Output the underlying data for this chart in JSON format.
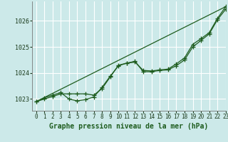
{
  "title": "Graphe pression niveau de la mer (hPa)",
  "bg_color": "#cce9e9",
  "grid_color": "#ffffff",
  "line_color": "#1e5c1e",
  "xlim": [
    -0.5,
    23
  ],
  "ylim": [
    1022.55,
    1026.75
  ],
  "yticks": [
    1023,
    1024,
    1025,
    1026
  ],
  "xticks": [
    0,
    1,
    2,
    3,
    4,
    5,
    6,
    7,
    8,
    9,
    10,
    11,
    12,
    13,
    14,
    15,
    16,
    17,
    18,
    19,
    20,
    21,
    22,
    23
  ],
  "series1": [
    1022.9,
    1023.0,
    1023.1,
    1023.2,
    1023.2,
    1023.2,
    1023.2,
    1023.15,
    1023.4,
    1023.85,
    1024.3,
    1024.38,
    1024.42,
    1024.1,
    1024.08,
    1024.12,
    1024.15,
    1024.35,
    1024.58,
    1025.1,
    1025.32,
    1025.55,
    1026.1,
    1026.55
  ],
  "series2": [
    1022.9,
    1023.05,
    1023.15,
    1023.25,
    1023.0,
    1022.93,
    1022.98,
    1023.08,
    1023.45,
    1023.88,
    1024.28,
    1024.38,
    1024.45,
    1024.05,
    1024.05,
    1024.1,
    1024.12,
    1024.28,
    1024.5,
    1025.0,
    1025.25,
    1025.5,
    1026.05,
    1026.45
  ],
  "trend_x": [
    0,
    23
  ],
  "trend_y": [
    1022.9,
    1026.55
  ],
  "ylabel_fontsize": 7,
  "xlabel_fontsize": 7,
  "tick_fontsize": 5.5,
  "marker": "+",
  "markersize": 4,
  "linewidth": 0.9
}
